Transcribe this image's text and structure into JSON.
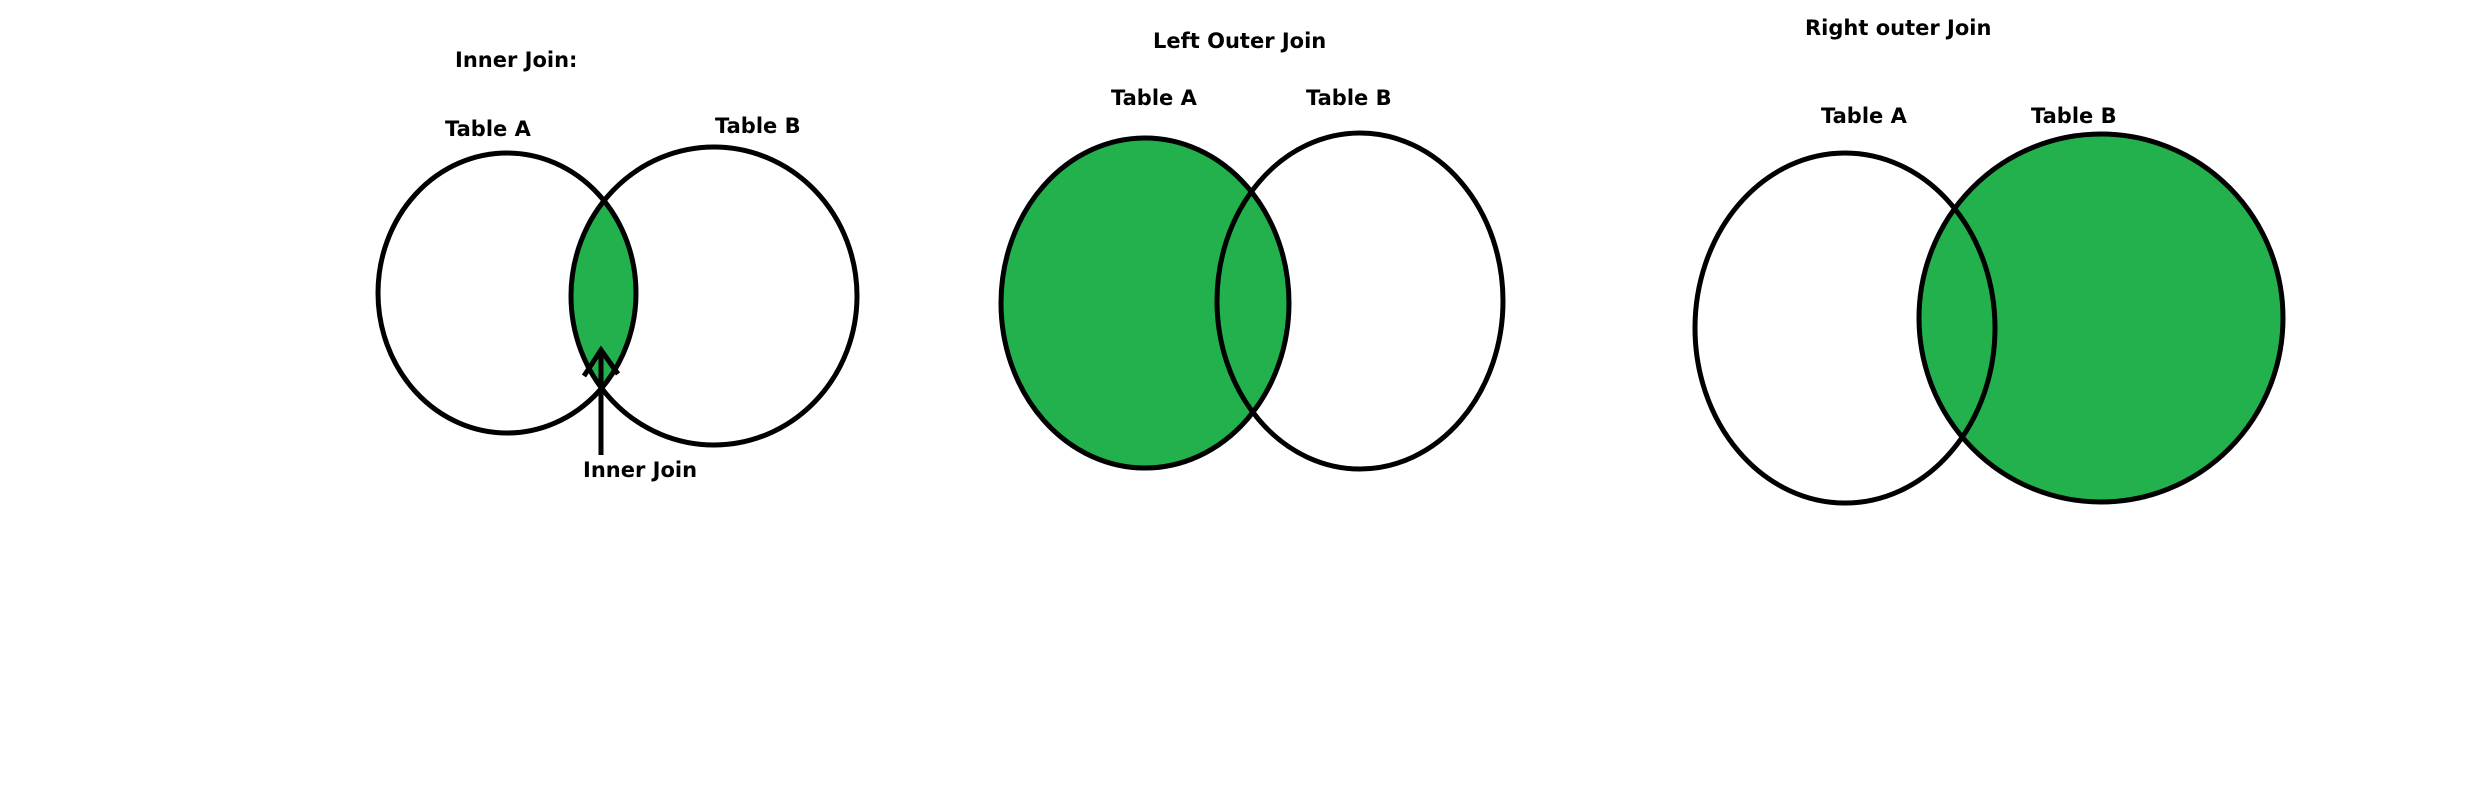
{
  "colors": {
    "fill": "#22b14c",
    "stroke": "#000000",
    "background": "#ffffff"
  },
  "inner_join": {
    "title": "Inner Join:",
    "table_a": "Table A",
    "table_b": "Table B",
    "arrow_label": "Inner Join",
    "highlighted": "intersection"
  },
  "left_outer_join": {
    "title": "Left Outer Join",
    "table_a": "Table A",
    "table_b": "Table B",
    "highlighted": "table-a"
  },
  "right_outer_join": {
    "title": "Right outer Join",
    "table_a": "Table A",
    "table_b": "Table B",
    "highlighted": "table-b"
  }
}
